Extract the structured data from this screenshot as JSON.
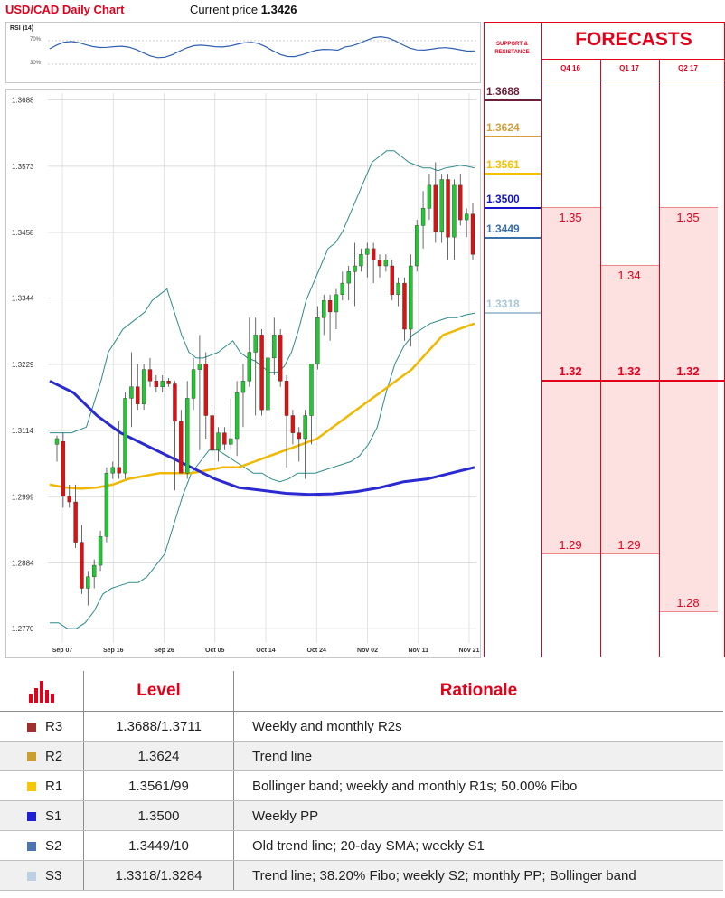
{
  "header": {
    "title": "USD/CAD Daily Chart",
    "price_label": "Current price",
    "price_value": "1.3426"
  },
  "rsi": {
    "label": "RSI (14)",
    "level_high": "70%",
    "level_low": "30%",
    "color": "#2f5fb3"
  },
  "support_resistance": {
    "heading_line1": "SUPPORT &",
    "heading_line2": "RESISTANCE",
    "levels": [
      {
        "value": "1.3688",
        "color": "#6b1f3a"
      },
      {
        "value": "1.3624",
        "color": "#d4a040"
      },
      {
        "value": "1.3561",
        "color": "#f4c000"
      },
      {
        "value": "1.3500",
        "color": "#1414c8"
      },
      {
        "value": "1.3449",
        "color": "#3b6fa8"
      },
      {
        "value": "1.3318",
        "color": "#a9c6d8"
      }
    ]
  },
  "forecasts": {
    "title": "FORECASTS",
    "columns": [
      {
        "head": "Q4 16",
        "high": "1.35",
        "mid": "1.32",
        "low": "1.29"
      },
      {
        "head": "Q1 17",
        "high": "1.34",
        "mid": "1.32",
        "low": "1.29"
      },
      {
        "head": "Q2 17",
        "high": "1.35",
        "mid": "1.32",
        "low": "1.28"
      }
    ]
  },
  "chart_data": {
    "type": "candlestick",
    "title": "USD/CAD Daily Chart",
    "ylim": [
      1.2745,
      1.37
    ],
    "y_ticks": [
      "1.3688",
      "1.3573",
      "1.3458",
      "1.3344",
      "1.3229",
      "1.3114",
      "1.2999",
      "1.2884",
      "1.2770"
    ],
    "x_ticks": [
      "Sep 07",
      "Sep 16",
      "Sep 26",
      "Oct 05",
      "Oct 14",
      "Oct 24",
      "Nov 02",
      "Nov 11",
      "Nov 21"
    ],
    "candles": [
      [
        1.309,
        1.3105,
        1.31,
        1.306
      ],
      [
        1.3095,
        1.311,
        1.3,
        1.298
      ],
      [
        1.3,
        1.302,
        1.299,
        1.298
      ],
      [
        1.299,
        1.302,
        1.292,
        1.291
      ],
      [
        1.292,
        1.295,
        1.284,
        1.283
      ],
      [
        1.284,
        1.287,
        1.286,
        1.281
      ],
      [
        1.286,
        1.289,
        1.288,
        1.284
      ],
      [
        1.288,
        1.294,
        1.293,
        1.287
      ],
      [
        1.293,
        1.305,
        1.304,
        1.292
      ],
      [
        1.304,
        1.306,
        1.305,
        1.303
      ],
      [
        1.305,
        1.313,
        1.304,
        1.303
      ],
      [
        1.304,
        1.318,
        1.317,
        1.303
      ],
      [
        1.317,
        1.325,
        1.319,
        1.312
      ],
      [
        1.319,
        1.323,
        1.316,
        1.315
      ],
      [
        1.316,
        1.323,
        1.322,
        1.315
      ],
      [
        1.322,
        1.324,
        1.32,
        1.319
      ],
      [
        1.32,
        1.321,
        1.319,
        1.318
      ],
      [
        1.319,
        1.321,
        1.32,
        1.318
      ],
      [
        1.32,
        1.3205,
        1.3195,
        1.319
      ],
      [
        1.3195,
        1.32,
        1.313,
        1.301
      ],
      [
        1.313,
        1.315,
        1.304,
        1.304
      ],
      [
        1.304,
        1.32,
        1.317,
        1.303
      ],
      [
        1.317,
        1.324,
        1.322,
        1.315
      ],
      [
        1.322,
        1.328,
        1.323,
        1.308
      ],
      [
        1.323,
        1.325,
        1.314,
        1.31
      ],
      [
        1.314,
        1.315,
        1.308,
        1.307
      ],
      [
        1.308,
        1.312,
        1.311,
        1.306
      ],
      [
        1.311,
        1.312,
        1.309,
        1.308
      ],
      [
        1.309,
        1.317,
        1.31,
        1.308
      ],
      [
        1.31,
        1.32,
        1.318,
        1.307
      ],
      [
        1.318,
        1.323,
        1.32,
        1.312
      ],
      [
        1.32,
        1.331,
        1.325,
        1.319
      ],
      [
        1.325,
        1.331,
        1.328,
        1.314
      ],
      [
        1.328,
        1.329,
        1.315,
        1.314
      ],
      [
        1.315,
        1.326,
        1.324,
        1.313
      ],
      [
        1.324,
        1.331,
        1.328,
        1.321
      ],
      [
        1.328,
        1.329,
        1.32,
        1.319
      ],
      [
        1.32,
        1.321,
        1.314,
        1.305
      ],
      [
        1.314,
        1.315,
        1.311,
        1.309
      ],
      [
        1.311,
        1.312,
        1.31,
        1.306
      ],
      [
        1.31,
        1.315,
        1.314,
        1.303
      ],
      [
        1.314,
        1.323,
        1.323,
        1.309
      ],
      [
        1.323,
        1.333,
        1.331,
        1.322
      ],
      [
        1.331,
        1.335,
        1.334,
        1.328
      ],
      [
        1.334,
        1.335,
        1.332,
        1.327
      ],
      [
        1.332,
        1.336,
        1.335,
        1.329
      ],
      [
        1.335,
        1.339,
        1.337,
        1.334
      ],
      [
        1.337,
        1.34,
        1.339,
        1.334
      ],
      [
        1.339,
        1.344,
        1.34,
        1.333
      ],
      [
        1.34,
        1.343,
        1.342,
        1.339
      ],
      [
        1.342,
        1.344,
        1.343,
        1.338
      ],
      [
        1.343,
        1.344,
        1.341,
        1.337
      ],
      [
        1.341,
        1.342,
        1.34,
        1.338
      ],
      [
        1.34,
        1.342,
        1.341,
        1.339
      ],
      [
        1.34,
        1.341,
        1.335,
        1.334
      ],
      [
        1.335,
        1.338,
        1.337,
        1.333
      ],
      [
        1.337,
        1.338,
        1.329,
        1.327
      ],
      [
        1.329,
        1.342,
        1.34,
        1.326
      ],
      [
        1.34,
        1.348,
        1.347,
        1.339
      ],
      [
        1.347,
        1.353,
        1.35,
        1.343
      ],
      [
        1.35,
        1.356,
        1.354,
        1.348
      ],
      [
        1.354,
        1.358,
        1.346,
        1.344
      ],
      [
        1.346,
        1.356,
        1.355,
        1.344
      ],
      [
        1.355,
        1.356,
        1.345,
        1.341
      ],
      [
        1.345,
        1.355,
        1.354,
        1.341
      ],
      [
        1.354,
        1.356,
        1.348,
        1.347
      ],
      [
        1.348,
        1.35,
        1.349,
        1.345
      ],
      [
        1.349,
        1.351,
        1.342,
        1.341
      ]
    ],
    "bollinger_upper": [
      1.311,
      1.311,
      1.311,
      1.311,
      1.3115,
      1.312,
      1.316,
      1.32,
      1.325,
      1.327,
      1.329,
      1.33,
      1.331,
      1.332,
      1.334,
      1.335,
      1.336,
      1.332,
      1.328,
      1.325,
      1.324,
      1.324,
      1.3245,
      1.325,
      1.326,
      1.327,
      1.325,
      1.324,
      1.3235,
      1.3225,
      1.3215,
      1.3215,
      1.3225,
      1.325,
      1.329,
      1.334,
      1.337,
      1.34,
      1.343,
      1.344,
      1.346,
      1.349,
      1.352,
      1.355,
      1.358,
      1.359,
      1.36,
      1.36,
      1.359,
      1.358,
      1.3575,
      1.357,
      1.357,
      1.3565,
      1.357,
      1.3572,
      1.3575,
      1.3573,
      1.357
    ],
    "bollinger_lower": [
      1.278,
      1.278,
      1.277,
      1.277,
      1.278,
      1.28,
      1.283,
      1.284,
      1.2845,
      1.285,
      1.285,
      1.286,
      1.288,
      1.29,
      1.295,
      1.3,
      1.304,
      1.306,
      1.308,
      1.308,
      1.307,
      1.306,
      1.305,
      1.304,
      1.304,
      1.303,
      1.3025,
      1.303,
      1.304,
      1.304,
      1.304,
      1.3045,
      1.305,
      1.3055,
      1.306,
      1.307,
      1.309,
      1.312,
      1.318,
      1.323,
      1.326,
      1.328,
      1.329,
      1.33,
      1.3305,
      1.331,
      1.331,
      1.3315,
      1.3318
    ],
    "sma_yellow": [
      1.302,
      1.3015,
      1.3013,
      1.3015,
      1.302,
      1.303,
      1.3035,
      1.304,
      1.304,
      1.304,
      1.3045,
      1.305,
      1.305,
      1.306,
      1.307,
      1.308,
      1.309,
      1.31,
      1.312,
      1.314,
      1.316,
      1.318,
      1.32,
      1.322,
      1.325,
      1.328,
      1.329,
      1.33
    ],
    "sma_blue": [
      1.32,
      1.318,
      1.314,
      1.311,
      1.309,
      1.307,
      1.305,
      1.303,
      1.3015,
      1.301,
      1.3005,
      1.3003,
      1.3004,
      1.3008,
      1.3015,
      1.3025,
      1.303,
      1.304,
      1.305
    ]
  },
  "levels_table": {
    "headers": {
      "level": "Level",
      "rationale": "Rationale"
    },
    "rows": [
      {
        "name": "R3",
        "level": "1.3688/1.3711",
        "rationale": "Weekly and monthly R2s",
        "color": "#a0302d"
      },
      {
        "name": "R2",
        "level": "1.3624",
        "rationale": "Trend line",
        "color": "#c9a02e"
      },
      {
        "name": "R1",
        "level": "1.3561/99",
        "rationale": "Bollinger band; weekly and monthly R1s; 50.00% Fibo",
        "color": "#f6c800"
      },
      {
        "name": "S1",
        "level": "1.3500",
        "rationale": "Weekly PP",
        "color": "#1f1fd6"
      },
      {
        "name": "S2",
        "level": "1.3449/10",
        "rationale": "Old trend line; 20-day SMA; weekly S1",
        "color": "#4a74b2"
      },
      {
        "name": "S3",
        "level": "1.3318/1.3284",
        "rationale": "Trend line; 38.20% Fibo; weekly S2; monthly PP; Bollinger band",
        "color": "#bcd0e4"
      }
    ]
  }
}
